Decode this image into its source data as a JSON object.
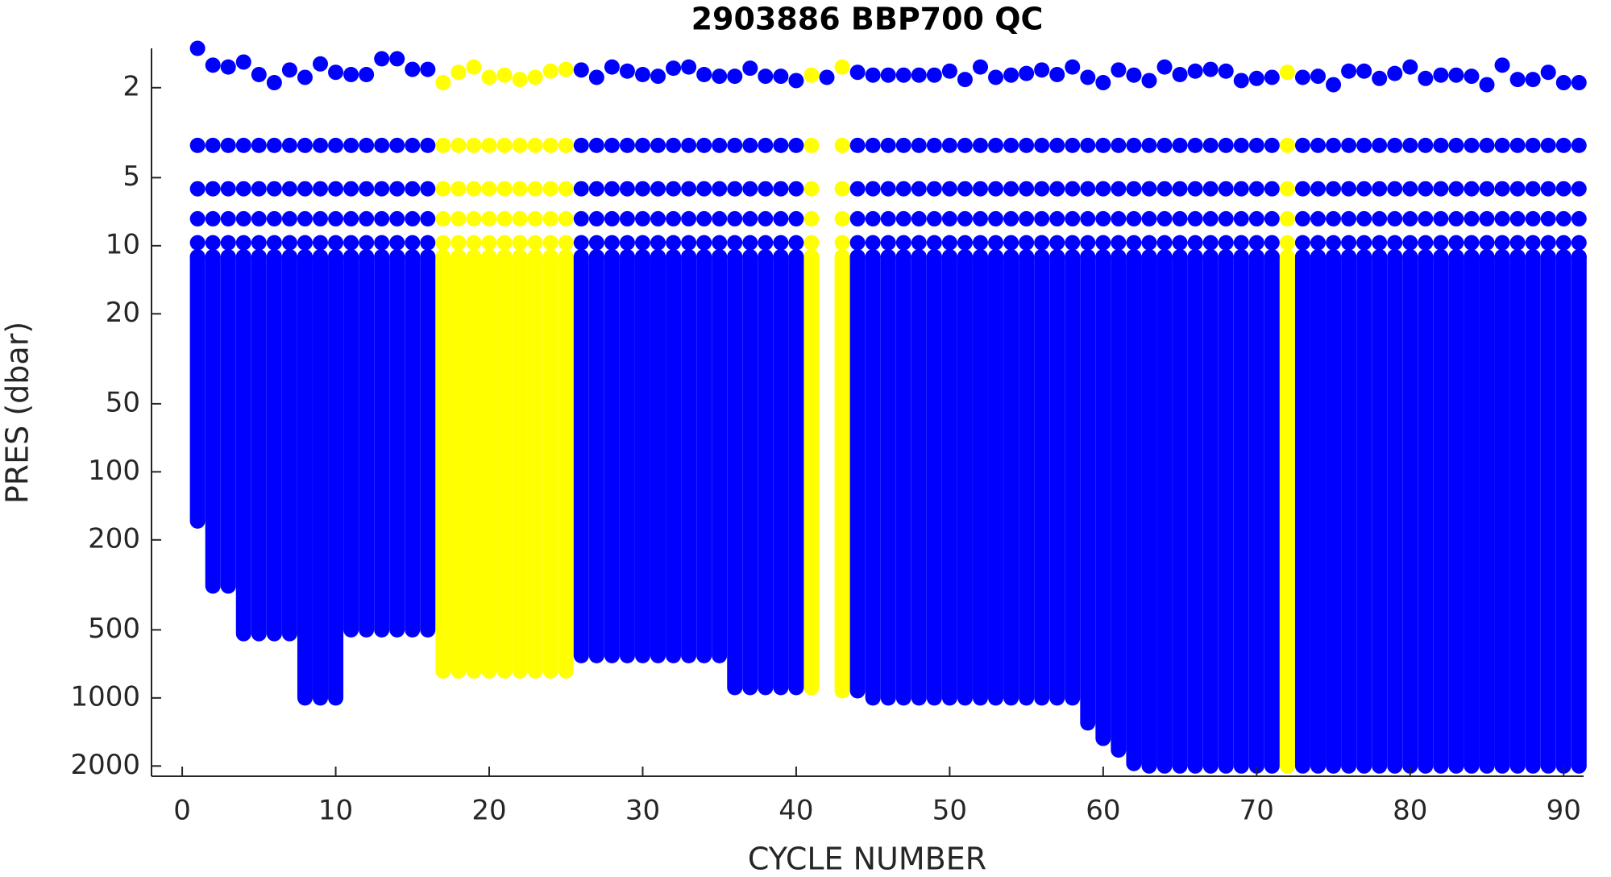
{
  "chart_data": {
    "type": "scatter",
    "title": "2903886 BBP700 QC",
    "xlabel": "CYCLE NUMBER",
    "ylabel": "PRES (dbar)",
    "xlim": [
      -2,
      91.3
    ],
    "xticks": [
      0,
      10,
      20,
      30,
      40,
      50,
      60,
      70,
      80,
      90
    ],
    "ylim": [
      1.34,
      2220
    ],
    "yticks": [
      2,
      5,
      10,
      20,
      50,
      100,
      200,
      500,
      1000,
      2000
    ],
    "y_log": true,
    "y_reversed": true,
    "grid": false,
    "x": [
      1,
      2,
      3,
      4,
      5,
      6,
      7,
      8,
      9,
      10,
      11,
      12,
      13,
      14,
      15,
      16,
      17,
      18,
      19,
      20,
      21,
      22,
      23,
      24,
      25,
      26,
      27,
      28,
      29,
      30,
      31,
      32,
      33,
      34,
      35,
      36,
      37,
      38,
      39,
      40,
      41,
      42,
      43,
      44,
      45,
      46,
      47,
      48,
      49,
      50,
      51,
      52,
      53,
      54,
      55,
      56,
      57,
      58,
      59,
      60,
      61,
      62,
      63,
      64,
      65,
      66,
      67,
      68,
      69,
      70,
      71,
      72,
      73,
      74,
      75,
      76,
      77,
      78,
      79,
      80,
      81,
      82,
      83,
      84,
      85,
      86,
      87,
      88,
      89,
      90,
      91
    ],
    "surface_pres": [
      1.34,
      1.59,
      1.62,
      1.54,
      1.75,
      1.9,
      1.67,
      1.8,
      1.57,
      1.71,
      1.75,
      1.75,
      1.49,
      1.49,
      1.66,
      1.66,
      1.9,
      1.71,
      1.62,
      1.8,
      1.76,
      1.84,
      1.8,
      1.69,
      1.66,
      1.67,
      1.8,
      1.62,
      1.69,
      1.75,
      1.78,
      1.64,
      1.62,
      1.75,
      1.78,
      1.78,
      1.64,
      1.78,
      1.78,
      1.86,
      1.76,
      1.8,
      1.62,
      1.71,
      1.76,
      1.76,
      1.76,
      1.76,
      1.76,
      1.69,
      1.84,
      1.62,
      1.8,
      1.76,
      1.73,
      1.67,
      1.75,
      1.62,
      1.8,
      1.9,
      1.67,
      1.76,
      1.86,
      1.62,
      1.75,
      1.69,
      1.66,
      1.69,
      1.86,
      1.82,
      1.8,
      1.71,
      1.8,
      1.78,
      1.94,
      1.69,
      1.69,
      1.82,
      1.73,
      1.62,
      1.82,
      1.76,
      1.76,
      1.78,
      1.94,
      1.59,
      1.84,
      1.84,
      1.71,
      1.9,
      1.9
    ],
    "levels": [
      3.6,
      5.6,
      7.6,
      9.7,
      11.2
    ],
    "max_pres": [
      165,
      320,
      320,
      520,
      520,
      520,
      520,
      1000,
      1000,
      1000,
      500,
      500,
      500,
      500,
      500,
      500,
      760,
      760,
      760,
      760,
      760,
      760,
      760,
      760,
      760,
      650,
      650,
      650,
      650,
      650,
      650,
      650,
      650,
      650,
      650,
      900,
      900,
      900,
      900,
      900,
      900,
      null,
      930,
      930,
      1000,
      1000,
      1000,
      1000,
      1000,
      1000,
      1000,
      1000,
      1000,
      1000,
      1000,
      1000,
      1000,
      1000,
      1290,
      1510,
      1700,
      1950,
      2000,
      2000,
      2000,
      2000,
      2000,
      2000,
      2000,
      2000,
      2000,
      2000,
      2000,
      2000,
      2000,
      2000,
      2000,
      2000,
      2000,
      2000,
      2000,
      2000,
      2000,
      2000,
      2000,
      2000,
      2000,
      2000,
      2000,
      2000,
      2000
    ],
    "colors": [
      "#0000ff",
      "#0000ff",
      "#0000ff",
      "#0000ff",
      "#0000ff",
      "#0000ff",
      "#0000ff",
      "#0000ff",
      "#0000ff",
      "#0000ff",
      "#0000ff",
      "#0000ff",
      "#0000ff",
      "#0000ff",
      "#0000ff",
      "#0000ff",
      "#ffff00",
      "#ffff00",
      "#ffff00",
      "#ffff00",
      "#ffff00",
      "#ffff00",
      "#ffff00",
      "#ffff00",
      "#ffff00",
      "#0000ff",
      "#0000ff",
      "#0000ff",
      "#0000ff",
      "#0000ff",
      "#0000ff",
      "#0000ff",
      "#0000ff",
      "#0000ff",
      "#0000ff",
      "#0000ff",
      "#0000ff",
      "#0000ff",
      "#0000ff",
      "#0000ff",
      "#ffff00",
      "#0000ff",
      "#ffff00",
      "#0000ff",
      "#0000ff",
      "#0000ff",
      "#0000ff",
      "#0000ff",
      "#0000ff",
      "#0000ff",
      "#0000ff",
      "#0000ff",
      "#0000ff",
      "#0000ff",
      "#0000ff",
      "#0000ff",
      "#0000ff",
      "#0000ff",
      "#0000ff",
      "#0000ff",
      "#0000ff",
      "#0000ff",
      "#0000ff",
      "#0000ff",
      "#0000ff",
      "#0000ff",
      "#0000ff",
      "#0000ff",
      "#0000ff",
      "#0000ff",
      "#0000ff",
      "#ffff00",
      "#0000ff",
      "#0000ff",
      "#0000ff",
      "#0000ff",
      "#0000ff",
      "#0000ff",
      "#0000ff",
      "#0000ff",
      "#0000ff",
      "#0000ff",
      "#0000ff",
      "#0000ff",
      "#0000ff",
      "#0000ff",
      "#0000ff",
      "#0000ff",
      "#0000ff",
      "#0000ff",
      "#0000ff"
    ]
  }
}
